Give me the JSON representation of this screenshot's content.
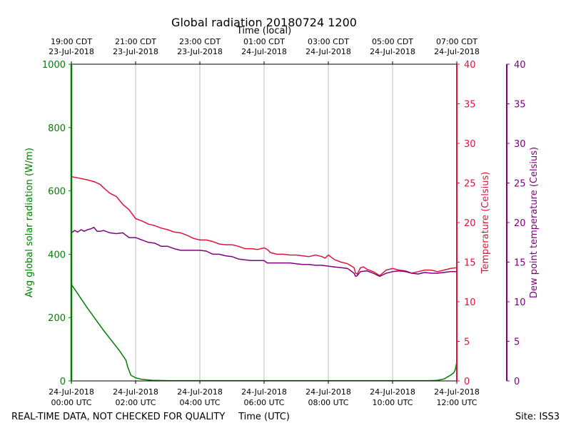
{
  "chart_data": {
    "type": "line",
    "title": "Global radiation 20180724 1200",
    "top_axis_label": "Time (local)",
    "xlabel": "Time (UTC)",
    "footer_left": "REAL-TIME DATA, NOT CHECKED FOR QUALITY",
    "footer_right": "Site: ISS3",
    "x_range_hours_utc": [
      0,
      12
    ],
    "bottom_ticks": [
      {
        "h": 0,
        "line1": "24-Jul-2018",
        "line2": "00:00 UTC"
      },
      {
        "h": 2,
        "line1": "24-Jul-2018",
        "line2": "02:00 UTC"
      },
      {
        "h": 4,
        "line1": "24-Jul-2018",
        "line2": "04:00 UTC"
      },
      {
        "h": 6,
        "line1": "24-Jul-2018",
        "line2": "06:00 UTC"
      },
      {
        "h": 8,
        "line1": "24-Jul-2018",
        "line2": "08:00 UTC"
      },
      {
        "h": 10,
        "line1": "24-Jul-2018",
        "line2": "10:00 UTC"
      },
      {
        "h": 12,
        "line1": "24-Jul-2018",
        "line2": "12:00 UTC"
      }
    ],
    "top_ticks": [
      {
        "h": 0,
        "line1": "19:00 CDT",
        "line2": "23-Jul-2018"
      },
      {
        "h": 2,
        "line1": "21:00 CDT",
        "line2": "23-Jul-2018"
      },
      {
        "h": 4,
        "line1": "23:00 CDT",
        "line2": "23-Jul-2018"
      },
      {
        "h": 6,
        "line1": "01:00 CDT",
        "line2": "24-Jul-2018"
      },
      {
        "h": 8,
        "line1": "03:00 CDT",
        "line2": "24-Jul-2018"
      },
      {
        "h": 10,
        "line1": "05:00 CDT",
        "line2": "24-Jul-2018"
      },
      {
        "h": 12,
        "line1": "07:00 CDT",
        "line2": "24-Jul-2018"
      }
    ],
    "grid_vertical": true,
    "axes": {
      "left": {
        "label": "Avg global solar radiation (W/m)",
        "ylim": [
          0,
          1000
        ],
        "ticks": [
          0,
          200,
          400,
          600,
          800,
          1000
        ],
        "color": "#008000"
      },
      "right1": {
        "label": "Temperature (Celsius)",
        "ylim": [
          0,
          40
        ],
        "ticks": [
          0,
          5,
          10,
          15,
          20,
          25,
          30,
          35,
          40
        ],
        "color": "#dc143c"
      },
      "right2": {
        "label": "Dew point temperature (Celsius)",
        "ylim": [
          0,
          40
        ],
        "ticks": [
          0,
          5,
          10,
          15,
          20,
          25,
          30,
          35,
          40
        ],
        "color": "#800080"
      }
    },
    "series": [
      {
        "axis": "left",
        "color": "#008000",
        "x": [
          0,
          0.5,
          1.0,
          1.5,
          1.7,
          1.75,
          1.85,
          2.0,
          2.2,
          2.5,
          3,
          6,
          9,
          10.5,
          11.2,
          11.4,
          11.6,
          11.7,
          11.8,
          11.9,
          11.95,
          12.0
        ],
        "values": [
          305,
          230,
          160,
          95,
          65,
          45,
          18,
          10,
          5,
          2,
          1,
          1,
          1,
          1,
          1,
          2,
          6,
          12,
          18,
          25,
          35,
          60
        ]
      },
      {
        "axis": "right1",
        "color": "#dc143c",
        "x": [
          0,
          0.25,
          0.5,
          0.75,
          0.9,
          1.0,
          1.2,
          1.4,
          1.6,
          1.8,
          2.0,
          2.2,
          2.4,
          2.6,
          2.8,
          3.0,
          3.2,
          3.4,
          3.6,
          3.8,
          4.0,
          4.2,
          4.4,
          4.6,
          4.8,
          5.0,
          5.2,
          5.4,
          5.6,
          5.8,
          6.0,
          6.1,
          6.2,
          6.4,
          6.6,
          6.8,
          7.0,
          7.2,
          7.4,
          7.6,
          7.8,
          7.9,
          8.0,
          8.1,
          8.2,
          8.4,
          8.6,
          8.8,
          8.85,
          8.9,
          9.0,
          9.1,
          9.2,
          9.4,
          9.6,
          9.8,
          10.0,
          10.2,
          10.4,
          10.6,
          10.8,
          11.0,
          11.2,
          11.4,
          11.6,
          11.8,
          12.0
        ],
        "values": [
          25.8,
          25.6,
          25.4,
          25.1,
          24.8,
          24.4,
          23.7,
          23.3,
          22.3,
          21.6,
          20.5,
          20.2,
          19.8,
          19.6,
          19.3,
          19.1,
          18.8,
          18.7,
          18.4,
          18.0,
          17.8,
          17.8,
          17.6,
          17.3,
          17.2,
          17.2,
          17.0,
          16.7,
          16.7,
          16.6,
          16.8,
          16.6,
          16.2,
          16.0,
          16.0,
          15.9,
          15.9,
          15.8,
          15.7,
          15.9,
          15.7,
          15.5,
          15.9,
          15.6,
          15.3,
          15.0,
          14.8,
          14.3,
          13.6,
          13.5,
          14.3,
          14.4,
          14.1,
          13.8,
          13.3,
          14.0,
          14.2,
          14.0,
          13.9,
          13.6,
          13.8,
          14.0,
          14.0,
          13.8,
          14.0,
          14.2,
          14.3
        ]
      },
      {
        "axis": "right2",
        "color": "#800080",
        "x": [
          0,
          0.1,
          0.2,
          0.3,
          0.4,
          0.5,
          0.6,
          0.7,
          0.8,
          0.9,
          1.0,
          1.2,
          1.4,
          1.6,
          1.7,
          1.8,
          2.0,
          2.2,
          2.4,
          2.6,
          2.8,
          3.0,
          3.2,
          3.4,
          3.6,
          3.8,
          4.0,
          4.2,
          4.4,
          4.6,
          4.8,
          5.0,
          5.2,
          5.4,
          5.6,
          5.8,
          6.0,
          6.1,
          6.2,
          6.4,
          6.6,
          6.8,
          7.0,
          7.2,
          7.4,
          7.6,
          7.8,
          8.0,
          8.2,
          8.4,
          8.6,
          8.8,
          8.85,
          8.9,
          9.0,
          9.2,
          9.4,
          9.6,
          9.8,
          10.0,
          10.2,
          10.4,
          10.6,
          10.8,
          11.0,
          11.2,
          11.4,
          11.6,
          11.8,
          12.0
        ],
        "values": [
          18.7,
          19.0,
          18.8,
          19.1,
          18.9,
          19.1,
          19.2,
          19.4,
          18.9,
          18.9,
          19.0,
          18.7,
          18.6,
          18.7,
          18.4,
          18.1,
          18.1,
          17.8,
          17.5,
          17.4,
          17.0,
          17.0,
          16.7,
          16.5,
          16.5,
          16.5,
          16.5,
          16.4,
          16.0,
          16.0,
          15.8,
          15.7,
          15.4,
          15.3,
          15.2,
          15.2,
          15.2,
          14.9,
          14.9,
          14.9,
          14.9,
          14.9,
          14.8,
          14.7,
          14.7,
          14.6,
          14.6,
          14.5,
          14.4,
          14.3,
          14.2,
          13.6,
          13.2,
          13.3,
          13.8,
          13.9,
          13.6,
          13.2,
          13.6,
          13.8,
          13.9,
          13.8,
          13.6,
          13.5,
          13.7,
          13.6,
          13.6,
          13.7,
          13.8,
          13.8
        ]
      }
    ]
  }
}
